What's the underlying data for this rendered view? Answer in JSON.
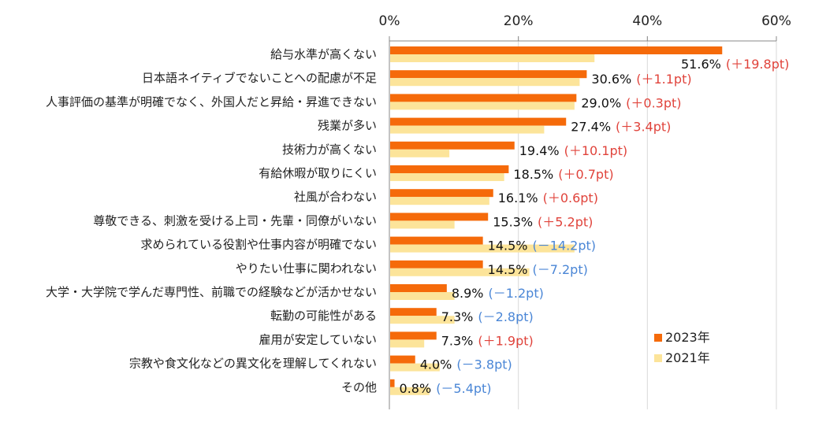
{
  "chart_data": {
    "type": "bar",
    "orientation": "horizontal",
    "xlim": [
      0,
      60
    ],
    "x_ticks": [
      "0%",
      "20%",
      "40%",
      "60%"
    ],
    "x_tick_values": [
      0,
      20,
      40,
      60
    ],
    "grid": true,
    "legend_position": "bottom-right",
    "categories": [
      "給与水準が高くない",
      "日本語ネイティブでないことへの配慮が不足",
      "人事評価の基準が明確でなく、外国人だと昇給・昇進できない",
      "残業が多い",
      "技術力が高くない",
      "有給休暇が取りにくい",
      "社風が合わない",
      "尊敬できる、刺激を受ける上司・先輩・同僚がいない",
      "求められている役割や仕事内容が明確でない",
      "やりたい仕事に関われない",
      "大学・大学院で学んだ専門性、前職での経験などが活かせない",
      "転勤の可能性がある",
      "雇用が安定していない",
      "宗教や食文化などの異文化を理解してくれない",
      "その他"
    ],
    "series": [
      {
        "name": "2023年",
        "color": "#f56a0a",
        "values": [
          51.6,
          30.6,
          29.0,
          27.4,
          19.4,
          18.5,
          16.1,
          15.3,
          14.5,
          14.5,
          8.9,
          7.3,
          7.3,
          4.0,
          0.8
        ]
      },
      {
        "name": "2021年",
        "color": "#fce49a",
        "values": [
          31.8,
          29.5,
          28.7,
          24.0,
          9.3,
          17.8,
          15.5,
          10.1,
          28.7,
          21.7,
          10.1,
          10.1,
          5.4,
          7.8,
          6.2
        ]
      }
    ],
    "value_labels": [
      "51.6%",
      "30.6%",
      "29.0%",
      "27.4%",
      "19.4%",
      "18.5%",
      "16.1%",
      "15.3%",
      "14.5%",
      "14.5%",
      "8.9%",
      "7.3%",
      "7.3%",
      "4.0%",
      "0.8%"
    ],
    "diff_labels": [
      "(＋19.8pt)",
      "(＋1.1pt)",
      "(＋0.3pt)",
      "(＋3.4pt)",
      "(＋10.1pt)",
      "(＋0.7pt)",
      "(＋0.6pt)",
      "(＋5.2pt)",
      "(－14.2pt)",
      "(－7.2pt)",
      "(－1.2pt)",
      "(－2.8pt)",
      "(＋1.9pt)",
      "(－3.8pt)",
      "(－5.4pt)"
    ],
    "diff_direction": [
      "up",
      "up",
      "up",
      "up",
      "up",
      "up",
      "up",
      "up",
      "down",
      "down",
      "down",
      "down",
      "up",
      "down",
      "down"
    ],
    "colors": {
      "increase": "#e0433b",
      "decrease": "#4a86d6"
    }
  }
}
